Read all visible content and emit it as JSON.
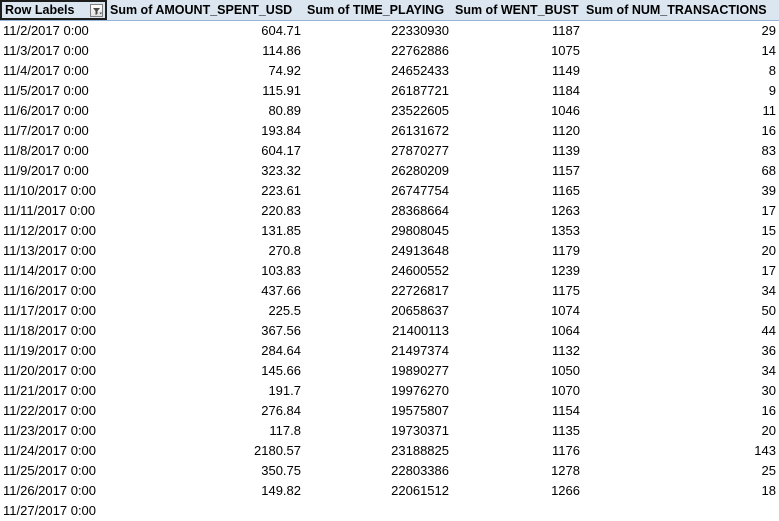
{
  "pivot": {
    "headers": {
      "row_labels": "Row Labels",
      "col1": "Sum of AMOUNT_SPENT_USD",
      "col2": "Sum of TIME_PLAYING",
      "col3": "Sum of WENT_BUST",
      "col4": "Sum of NUM_TRANSACTIONS",
      "filter_icon": "filter-dropdown-icon"
    },
    "rows": [
      [
        "11/2/2017 0:00",
        "604.71",
        "22330930",
        "1187",
        "29"
      ],
      [
        "11/3/2017 0:00",
        "114.86",
        "22762886",
        "1075",
        "14"
      ],
      [
        "11/4/2017 0:00",
        "74.92",
        "24652433",
        "1149",
        "8"
      ],
      [
        "11/5/2017 0:00",
        "115.91",
        "26187721",
        "1184",
        "9"
      ],
      [
        "11/6/2017 0:00",
        "80.89",
        "23522605",
        "1046",
        "11"
      ],
      [
        "11/7/2017 0:00",
        "193.84",
        "26131672",
        "1120",
        "16"
      ],
      [
        "11/8/2017 0:00",
        "604.17",
        "27870277",
        "1139",
        "83"
      ],
      [
        "11/9/2017 0:00",
        "323.32",
        "26280209",
        "1157",
        "68"
      ],
      [
        "11/10/2017 0:00",
        "223.61",
        "26747754",
        "1165",
        "39"
      ],
      [
        "11/11/2017 0:00",
        "220.83",
        "28368664",
        "1263",
        "17"
      ],
      [
        "11/12/2017 0:00",
        "131.85",
        "29808045",
        "1353",
        "15"
      ],
      [
        "11/13/2017 0:00",
        "270.8",
        "24913648",
        "1179",
        "20"
      ],
      [
        "11/14/2017 0:00",
        "103.83",
        "24600552",
        "1239",
        "17"
      ],
      [
        "11/16/2017 0:00",
        "437.66",
        "22726817",
        "1175",
        "34"
      ],
      [
        "11/17/2017 0:00",
        "225.5",
        "20658637",
        "1074",
        "50"
      ],
      [
        "11/18/2017 0:00",
        "367.56",
        "21400113",
        "1064",
        "44"
      ],
      [
        "11/19/2017 0:00",
        "284.64",
        "21497374",
        "1132",
        "36"
      ],
      [
        "11/20/2017 0:00",
        "145.66",
        "19890277",
        "1050",
        "34"
      ],
      [
        "11/21/2017 0:00",
        "191.7",
        "19976270",
        "1070",
        "30"
      ],
      [
        "11/22/2017 0:00",
        "276.84",
        "19575807",
        "1154",
        "16"
      ],
      [
        "11/23/2017 0:00",
        "117.8",
        "19730371",
        "1135",
        "20"
      ],
      [
        "11/24/2017 0:00",
        "2180.57",
        "23188825",
        "1176",
        "143"
      ],
      [
        "11/25/2017 0:00",
        "350.75",
        "22803386",
        "1278",
        "25"
      ],
      [
        "11/26/2017 0:00",
        "149.82",
        "22061512",
        "1266",
        "18"
      ]
    ],
    "partial_row_text": "11/27/2017 0:00"
  }
}
